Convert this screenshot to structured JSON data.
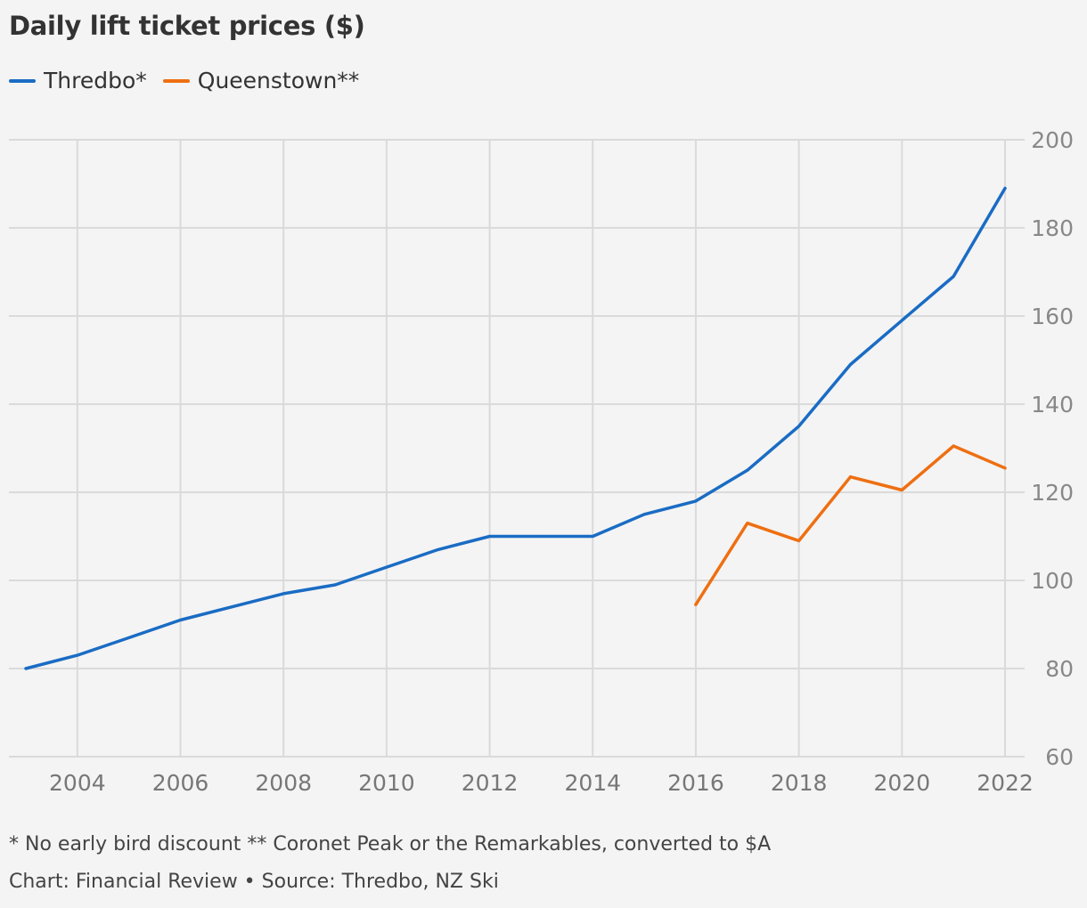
{
  "title": "Daily lift ticket prices ($)",
  "footnote": "* No early bird discount ** Coronet Peak or the Remarkables, converted to $A",
  "credit": "Chart: Financial Review • Source: Thredbo, NZ Ski",
  "chart_data": {
    "type": "line",
    "title": "Daily lift ticket prices ($)",
    "xlabel": "",
    "ylabel": "",
    "xlim": [
      2003,
      2022
    ],
    "ylim": [
      60,
      200
    ],
    "x_ticks": [
      "2004",
      "2006",
      "2008",
      "2010",
      "2012",
      "2014",
      "2016",
      "2018",
      "2020",
      "2022"
    ],
    "y_ticks": [
      "60",
      "80",
      "100",
      "120",
      "140",
      "160",
      "180",
      "200"
    ],
    "grid": true,
    "legend_position": "top-left",
    "series": [
      {
        "name": "Thredbo*",
        "color": "#1a6cc4",
        "x": [
          2003,
          2004,
          2005,
          2006,
          2007,
          2008,
          2009,
          2010,
          2011,
          2012,
          2013,
          2014,
          2015,
          2016,
          2017,
          2018,
          2019,
          2020,
          2021,
          2022
        ],
        "y": [
          80,
          83,
          87,
          91,
          94,
          97,
          99,
          103,
          107,
          110,
          110,
          110,
          115,
          118,
          125,
          135,
          149,
          159,
          169,
          189
        ]
      },
      {
        "name": "Queenstown**",
        "color": "#ee6f12",
        "x": [
          2016,
          2017,
          2018,
          2019,
          2020,
          2021,
          2022
        ],
        "y": [
          94.5,
          113,
          109,
          123.5,
          120.5,
          130.5,
          125.5
        ]
      }
    ]
  }
}
